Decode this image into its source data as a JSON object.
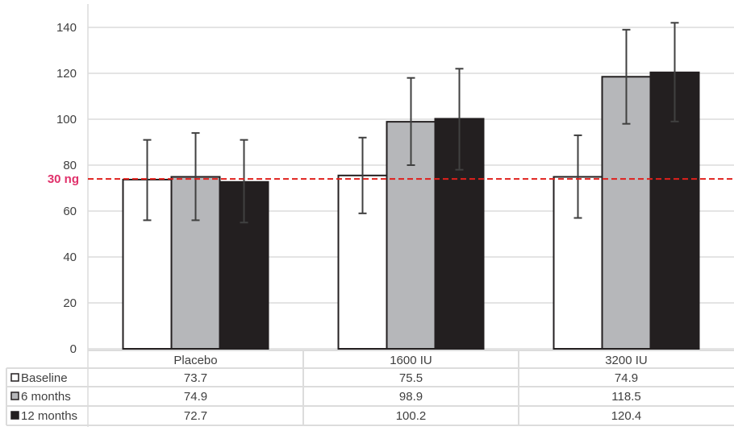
{
  "chart_data": {
    "type": "bar",
    "categories": [
      "Placebo",
      "1600 IU",
      "3200 IU"
    ],
    "series": [
      {
        "name": "Baseline",
        "values": [
          73.7,
          75.5,
          74.9
        ],
        "err_low": [
          56,
          59,
          57
        ],
        "err_high": [
          91,
          92,
          93
        ],
        "color": "#ffffff"
      },
      {
        "name": "6 months",
        "values": [
          74.9,
          98.9,
          118.5
        ],
        "err_low": [
          56,
          80,
          98
        ],
        "err_high": [
          94,
          118,
          139
        ],
        "color": "#b6b7ba"
      },
      {
        "name": "12 months",
        "values": [
          72.7,
          100.2,
          120.4
        ],
        "err_low": [
          55,
          78,
          99
        ],
        "err_high": [
          91,
          122,
          142
        ],
        "color": "#231f20"
      }
    ],
    "value_labels": [
      [
        "73.7",
        "75.5",
        "74.9"
      ],
      [
        "74.9",
        "98.9",
        "118.5"
      ],
      [
        "72.7",
        "100.2",
        "120.4"
      ]
    ],
    "yticks": [
      "0",
      "20",
      "40",
      "60",
      "80",
      "100",
      "120",
      "140"
    ],
    "ylim": [
      0,
      150
    ],
    "reference_line": {
      "value": 74,
      "label": "30 ng",
      "color": "#e0201c",
      "label_color": "#e0306a"
    },
    "grid": true,
    "legend": "table-left"
  }
}
